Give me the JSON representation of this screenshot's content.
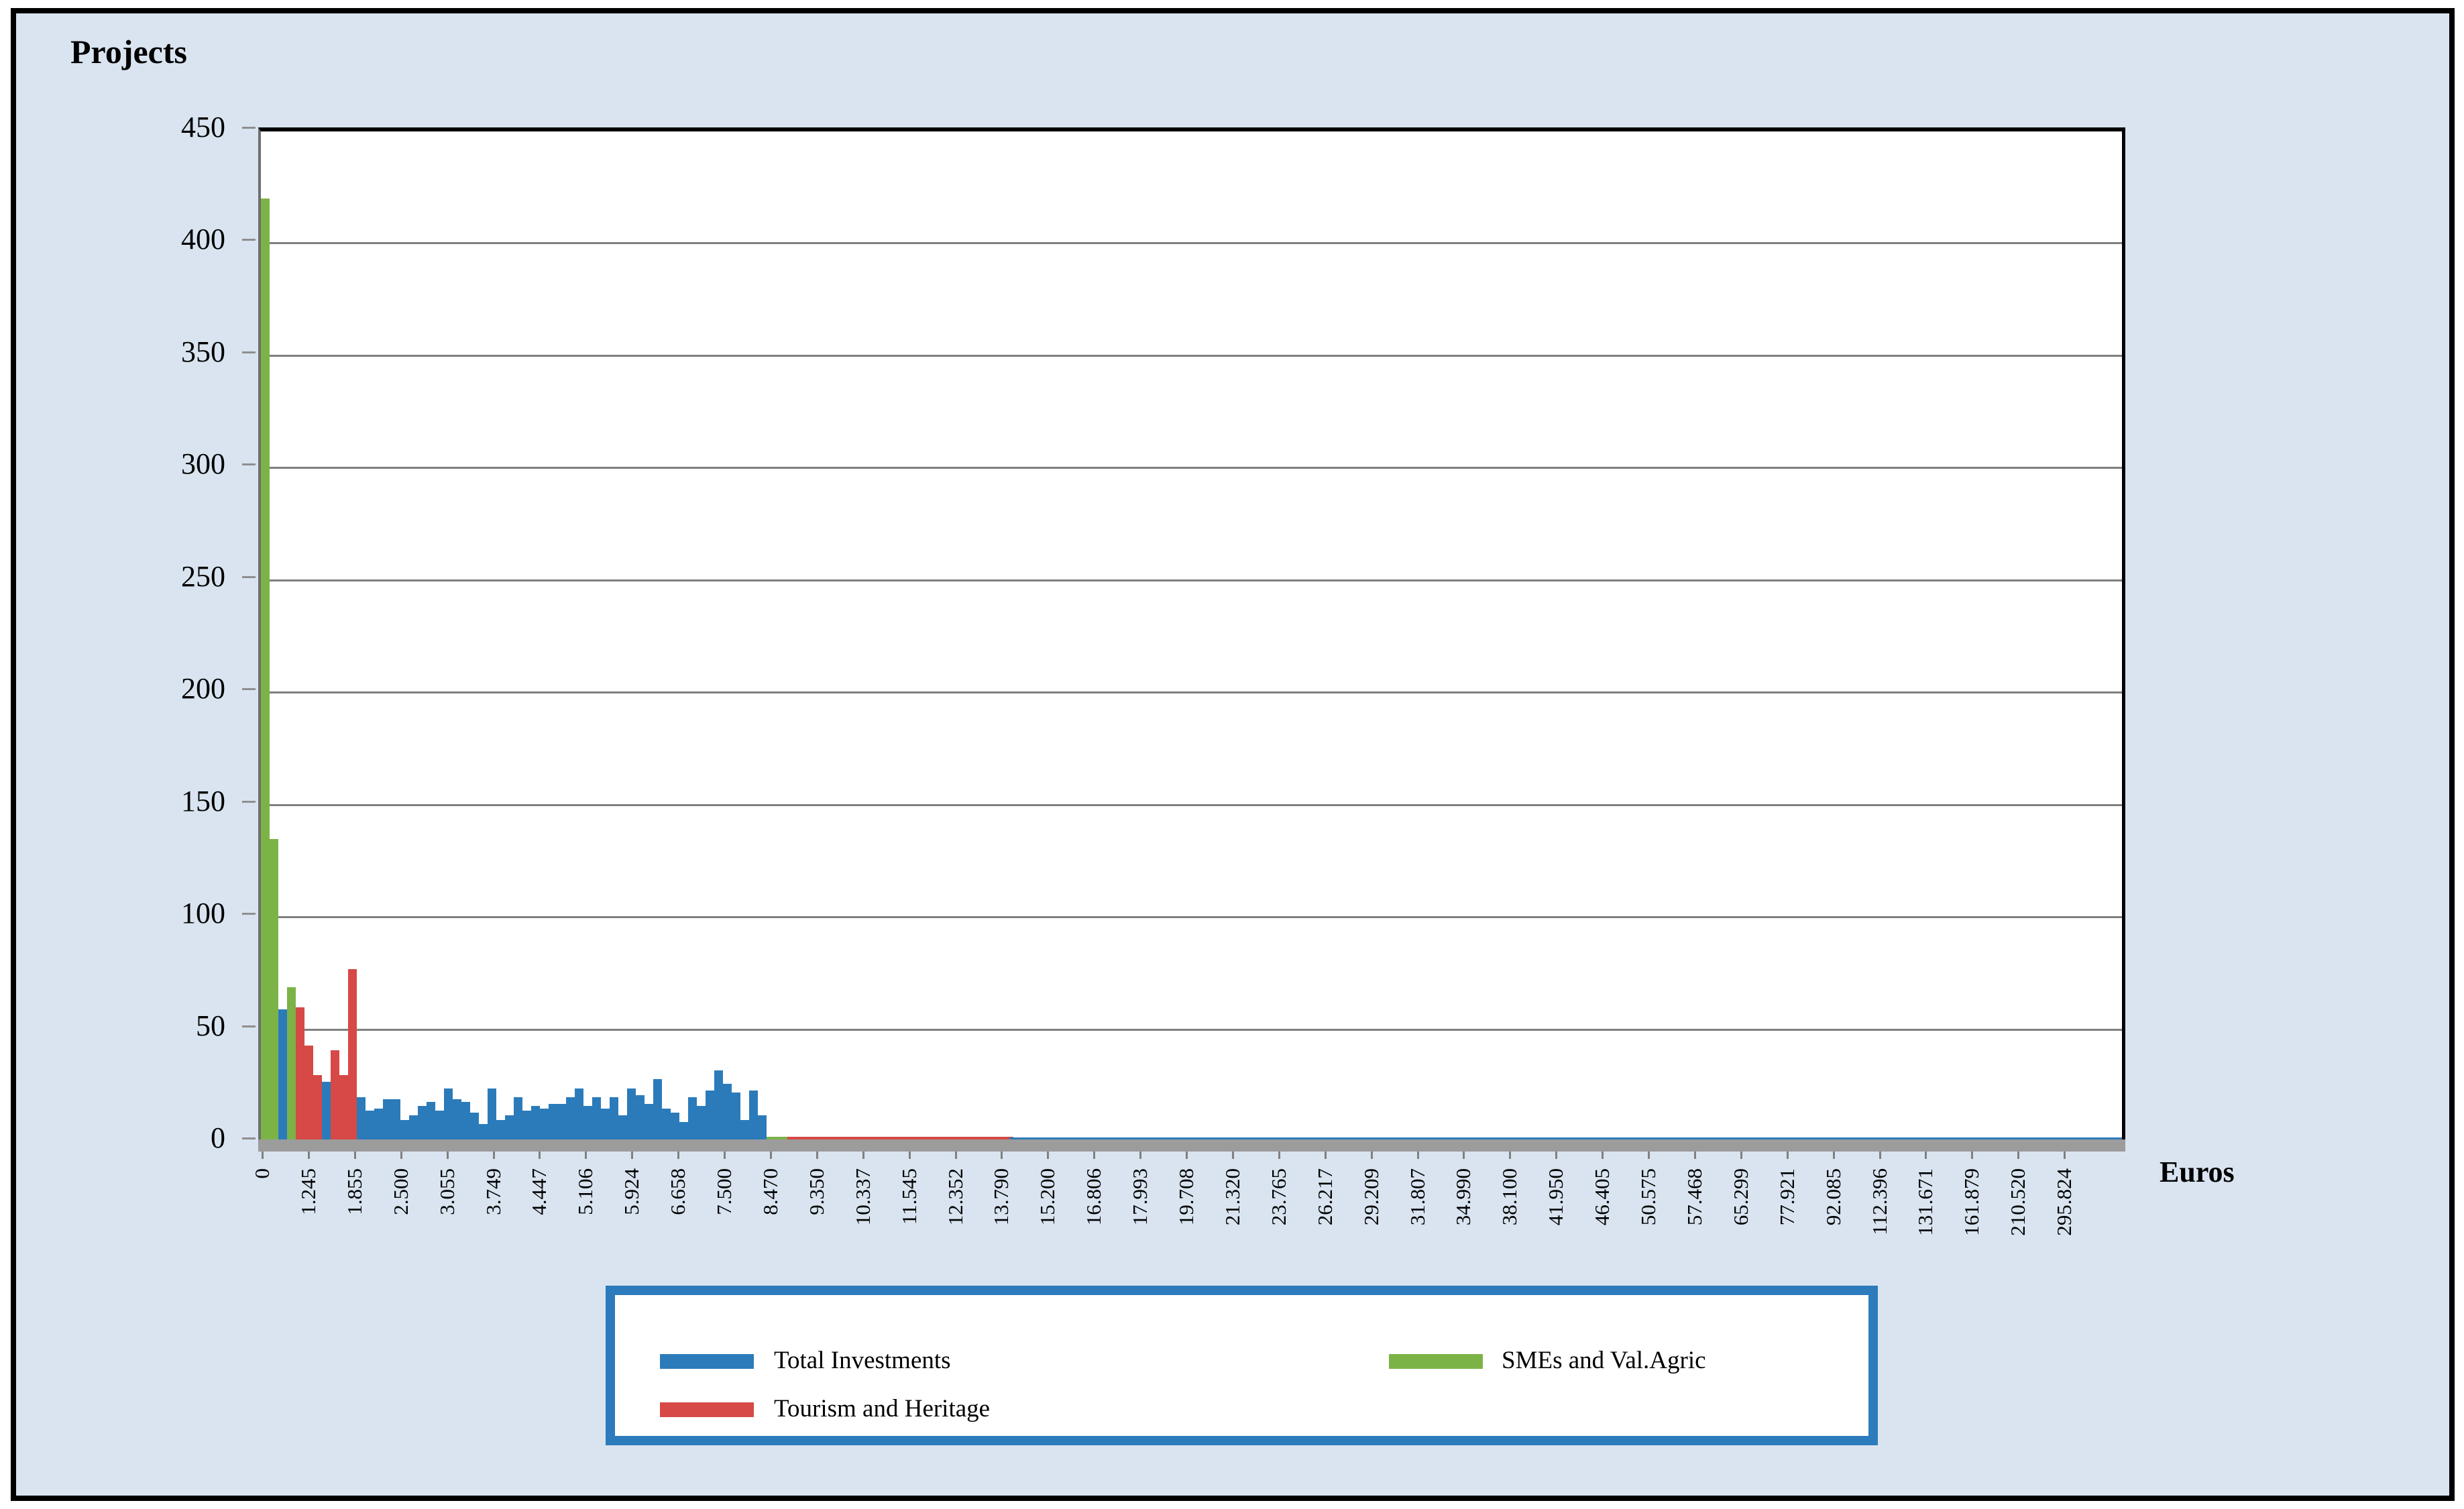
{
  "frame": {
    "background": "#D9E4F0",
    "border_color": "#000000"
  },
  "labels": {
    "y_title": "Projects",
    "x_title": "Euros"
  },
  "colors": {
    "total": "#2B7BBA",
    "tourism": "#D64946",
    "smes": "#7CB347",
    "grid": "#7F7F7F",
    "axis": "#000000",
    "shadow": "#9C9C9C",
    "legend_border": "#2C7BBD",
    "plot_bg": "#FFFFFF",
    "text": "#000000"
  },
  "legend": {
    "items": [
      {
        "series": "total",
        "label": "Total Investments"
      },
      {
        "series": "tourism",
        "label": "Tourism and Heritage"
      },
      {
        "series": "smes",
        "label": "SMEs and Val.Agric"
      }
    ]
  },
  "chart_data": {
    "type": "bar",
    "title": "",
    "xlabel": "Euros",
    "ylabel": "Projects",
    "ylim": [
      0,
      450
    ],
    "y_tick_step": 50,
    "grid": true,
    "legend_position": "bottom-center",
    "y_tick_labels": [
      "450",
      "400",
      "350",
      "300",
      "250",
      "200",
      "150",
      "100",
      "50",
      "0"
    ],
    "x_tick_labels": [
      "0",
      "1.245",
      "1.855",
      "2.500",
      "3.055",
      "3.749",
      "4.447",
      "5.106",
      "5.924",
      "6.658",
      "7.500",
      "8.470",
      "9.350",
      "10.337",
      "11.545",
      "12.352",
      "13.790",
      "15.200",
      "16.806",
      "17.993",
      "19.708",
      "21.320",
      "23.765",
      "26.217",
      "29.209",
      "31.807",
      "34.990",
      "38.100",
      "41.950",
      "46.405",
      "50.575",
      "57.468",
      "65.299",
      "77.921",
      "92.085",
      "112.396",
      "131.671",
      "161.879",
      "210.520",
      "295.824"
    ],
    "series_names": [
      "Total Investments",
      "Tourism and Heritage",
      "SMEs and Val.Agric"
    ],
    "dense_bars": [
      {
        "s": "smes",
        "v": 420
      },
      {
        "s": "smes",
        "v": 135
      },
      {
        "s": "total",
        "v": 59
      },
      {
        "s": "smes",
        "v": 69
      },
      {
        "s": "tourism",
        "v": 60
      },
      {
        "s": "tourism",
        "v": 43
      },
      {
        "s": "tourism",
        "v": 30
      },
      {
        "s": "total",
        "v": 27
      },
      {
        "s": "tourism",
        "v": 41
      },
      {
        "s": "tourism",
        "v": 30
      },
      {
        "s": "tourism",
        "v": 77
      },
      {
        "s": "total",
        "v": 20
      },
      {
        "s": "total",
        "v": 14
      },
      {
        "s": "total",
        "v": 15
      },
      {
        "s": "total",
        "v": 19
      },
      {
        "s": "total",
        "v": 19
      },
      {
        "s": "total",
        "v": 10
      },
      {
        "s": "total",
        "v": 12
      },
      {
        "s": "total",
        "v": 16
      },
      {
        "s": "total",
        "v": 18
      },
      {
        "s": "total",
        "v": 14
      },
      {
        "s": "total",
        "v": 24
      },
      {
        "s": "total",
        "v": 19
      },
      {
        "s": "total",
        "v": 18
      },
      {
        "s": "total",
        "v": 13
      },
      {
        "s": "total",
        "v": 8
      },
      {
        "s": "total",
        "v": 24
      },
      {
        "s": "total",
        "v": 10
      },
      {
        "s": "total",
        "v": 12
      },
      {
        "s": "total",
        "v": 20
      },
      {
        "s": "total",
        "v": 14
      },
      {
        "s": "total",
        "v": 16
      },
      {
        "s": "total",
        "v": 15
      },
      {
        "s": "total",
        "v": 17
      },
      {
        "s": "total",
        "v": 17
      },
      {
        "s": "total",
        "v": 20
      },
      {
        "s": "total",
        "v": 24
      },
      {
        "s": "total",
        "v": 16
      },
      {
        "s": "total",
        "v": 20
      },
      {
        "s": "total",
        "v": 15
      },
      {
        "s": "total",
        "v": 20
      },
      {
        "s": "total",
        "v": 12
      },
      {
        "s": "total",
        "v": 24
      },
      {
        "s": "total",
        "v": 21
      },
      {
        "s": "total",
        "v": 17
      },
      {
        "s": "total",
        "v": 28
      },
      {
        "s": "total",
        "v": 15
      },
      {
        "s": "total",
        "v": 13
      },
      {
        "s": "total",
        "v": 9
      },
      {
        "s": "total",
        "v": 20
      },
      {
        "s": "total",
        "v": 16
      },
      {
        "s": "total",
        "v": 23
      },
      {
        "s": "total",
        "v": 32
      },
      {
        "s": "total",
        "v": 26
      },
      {
        "s": "total",
        "v": 22
      },
      {
        "s": "total",
        "v": 10
      },
      {
        "s": "total",
        "v": 23
      },
      {
        "s": "total",
        "v": 12
      }
    ],
    "flat_segments": [
      {
        "s": "smes",
        "from_label_idx": 0,
        "to_label_idx": 11.4,
        "v": 2.5
      },
      {
        "s": "tourism",
        "from_label_idx": 11.4,
        "to_label_idx": 16.2,
        "v": 2.5
      },
      {
        "s": "total",
        "from_label_idx": 16.2,
        "to_label_idx": 40.3,
        "v": 2
      }
    ]
  }
}
